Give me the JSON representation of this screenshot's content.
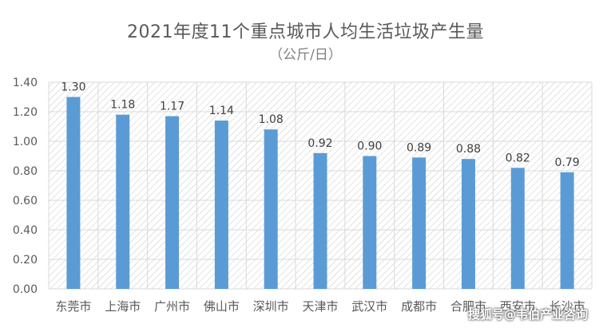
{
  "chart_data": {
    "type": "bar",
    "title": "2021年度11个重点城市人均生活垃圾产生量",
    "subtitle": "（公斤/日）",
    "categories": [
      "东莞市",
      "上海市",
      "广州市",
      "佛山市",
      "深圳市",
      "天津市",
      "武汉市",
      "成都市",
      "合肥市",
      "西安市",
      "长沙市"
    ],
    "values": [
      1.3,
      1.18,
      1.17,
      1.14,
      1.08,
      0.92,
      0.9,
      0.89,
      0.88,
      0.82,
      0.79
    ],
    "value_labels": [
      "1.30",
      "1.18",
      "1.17",
      "1.14",
      "1.08",
      "0.92",
      "0.90",
      "0.89",
      "0.88",
      "0.82",
      "0.79"
    ],
    "y_ticks": [
      "0.00",
      "0.20",
      "0.40",
      "0.60",
      "0.80",
      "1.00",
      "1.20",
      "1.40"
    ],
    "ylim": [
      0,
      1.4
    ],
    "grid": true,
    "legend": "none",
    "colors": {
      "bar": "#5b9bd5",
      "grid": "#d9d9d9",
      "text": "#595959",
      "hatch": "#c8c8c8"
    }
  },
  "watermark": "搜狐号@韦伯产业咨询"
}
